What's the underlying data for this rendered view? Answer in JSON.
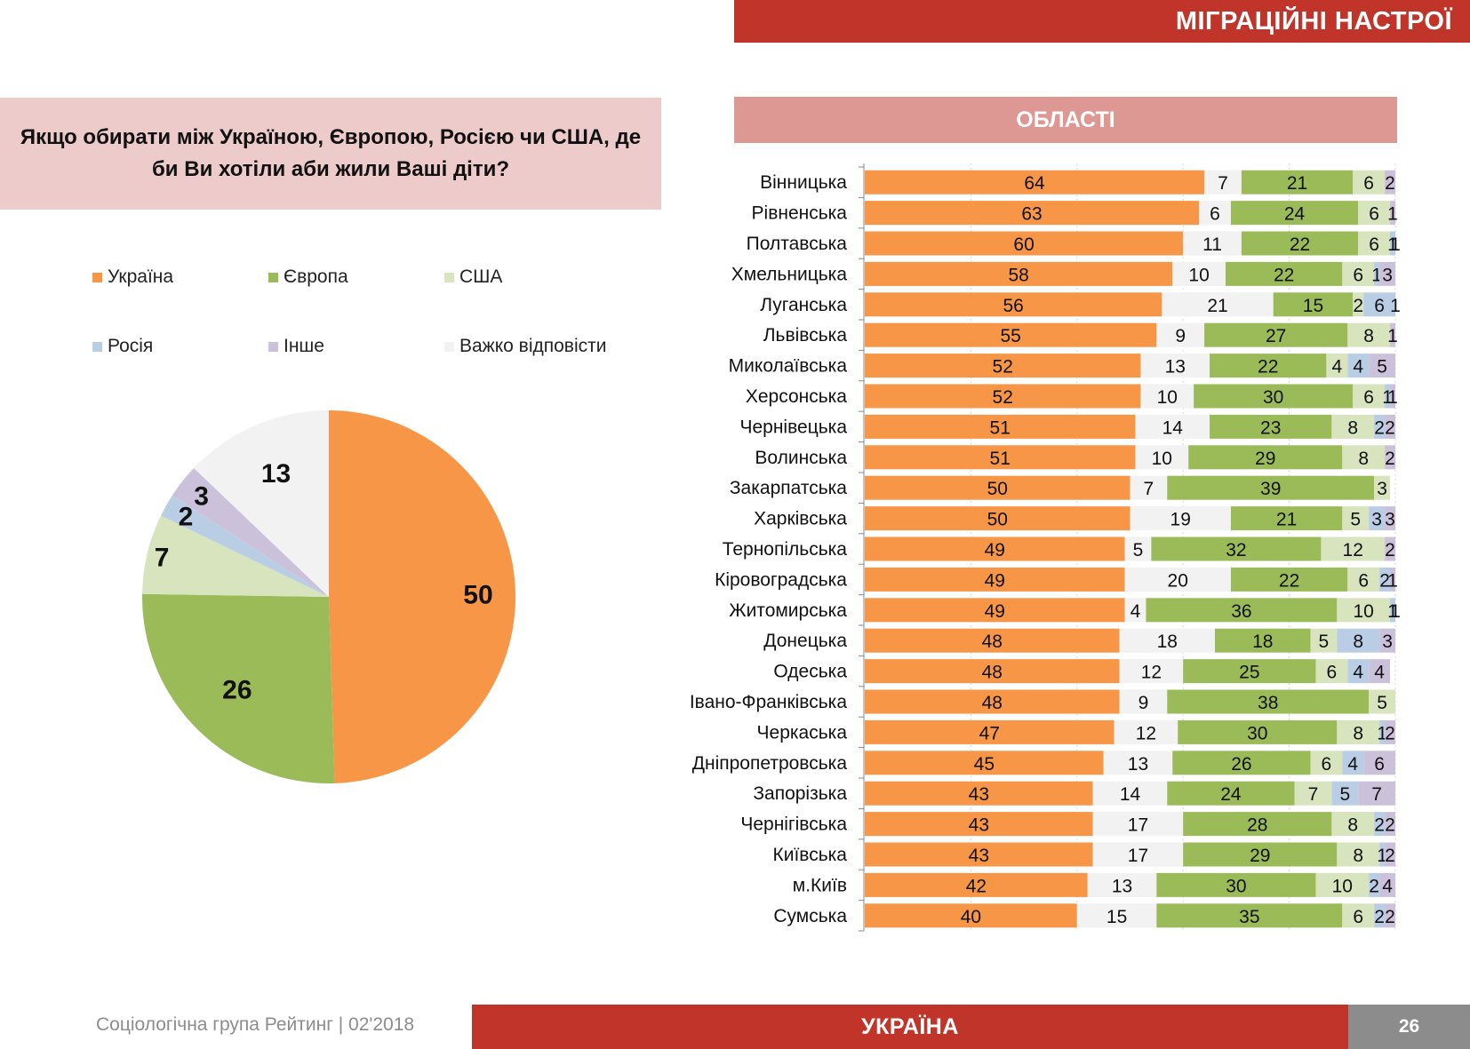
{
  "header": {
    "title": "МІГРАЦІЙНІ НАСТРОЇ"
  },
  "question": "Якщо обирати між Україною, Європою, Росією чи США, де би Ви хотіли аби жили Ваші діти?",
  "section_title": "ОБЛАСТІ",
  "colors": {
    "ukraine": "#f79646",
    "europe": "#9bbb59",
    "usa": "#d7e4bd",
    "russia": "#b9cde5",
    "other": "#ccc1da",
    "hard_to_say": "#f2f2f2",
    "brand_red": "#c0342a",
    "section_pink": "#dd9893",
    "question_bg": "#edcbcb"
  },
  "footer": {
    "source": "Соціологічна група Рейтинг  |  02'2018",
    "center": "УКРАЇНА",
    "page": "26"
  },
  "chart_data": [
    {
      "type": "pie",
      "title": "Якщо обирати між Україною, Європою, Росією чи США, де би Ви хотіли аби жили Ваші діти?",
      "legend_placement": "top",
      "legend": [
        "Україна",
        "Європа",
        "США",
        "Росія",
        "Інше",
        "Важко відповісти"
      ],
      "slices": [
        {
          "label": "Україна",
          "value": 50,
          "color_key": "ukraine"
        },
        {
          "label": "Європа",
          "value": 26,
          "color_key": "europe"
        },
        {
          "label": "США",
          "value": 7,
          "color_key": "usa"
        },
        {
          "label": "Росія",
          "value": 2,
          "color_key": "russia"
        },
        {
          "label": "Інше",
          "value": 3,
          "color_key": "other"
        },
        {
          "label": "Важко відповісти",
          "value": 13,
          "color_key": "hard_to_say"
        }
      ],
      "start": "12 o'clock, clockwise"
    },
    {
      "type": "bar",
      "orientation": "horizontal",
      "stacked": true,
      "title": "ОБЛАСТІ",
      "xlim": [
        0,
        100
      ],
      "grid": true,
      "series_order": [
        "Україна",
        "Важко відповісти",
        "Європа",
        "США",
        "Росія",
        "Інше"
      ],
      "series_color_keys": [
        "ukraine",
        "hard_to_say",
        "europe",
        "usa",
        "russia",
        "other"
      ],
      "categories": [
        "Вінницька",
        "Рівненська",
        "Полтавська",
        "Хмельницька",
        "Луганська",
        "Львівська",
        "Миколаївська",
        "Херсонська",
        "Чернівецька",
        "Волинська",
        "Закарпатська",
        "Харківська",
        "Тернопільська",
        "Кіровоградська",
        "Житомирська",
        "Донецька",
        "Одеська",
        "Івано-Франківська",
        "Черкаська",
        "Дніпропетровська",
        "Запорізька",
        "Чернігівська",
        "Київська",
        "м.Київ",
        "Сумська"
      ],
      "series": [
        {
          "name": "Україна",
          "values": [
            64,
            63,
            60,
            58,
            56,
            55,
            52,
            52,
            51,
            51,
            50,
            50,
            49,
            49,
            49,
            48,
            48,
            48,
            47,
            45,
            43,
            43,
            43,
            42,
            40
          ]
        },
        {
          "name": "Важко відповісти",
          "values": [
            7,
            6,
            11,
            10,
            21,
            9,
            13,
            10,
            14,
            10,
            7,
            19,
            5,
            20,
            4,
            18,
            12,
            9,
            12,
            13,
            14,
            17,
            17,
            13,
            15
          ]
        },
        {
          "name": "Європа",
          "values": [
            21,
            24,
            22,
            22,
            15,
            27,
            22,
            30,
            23,
            29,
            39,
            21,
            32,
            22,
            36,
            18,
            25,
            38,
            30,
            26,
            24,
            28,
            29,
            30,
            35
          ]
        },
        {
          "name": "США",
          "values": [
            6,
            6,
            6,
            6,
            2,
            8,
            4,
            6,
            8,
            8,
            3,
            5,
            12,
            6,
            10,
            5,
            6,
            5,
            8,
            6,
            7,
            8,
            8,
            10,
            6
          ]
        },
        {
          "name": "Росія",
          "values": [
            0,
            0,
            1,
            1,
            6,
            0,
            4,
            1,
            2,
            0,
            0,
            3,
            0,
            2,
            1,
            8,
            4,
            0,
            1,
            4,
            5,
            2,
            1,
            2,
            2
          ]
        },
        {
          "name": "Інше",
          "values": [
            2,
            1,
            1,
            3,
            1,
            1,
            5,
            1,
            2,
            2,
            0,
            3,
            2,
            1,
            1,
            3,
            4,
            0,
            2,
            6,
            7,
            2,
            2,
            4,
            2
          ]
        }
      ]
    }
  ]
}
